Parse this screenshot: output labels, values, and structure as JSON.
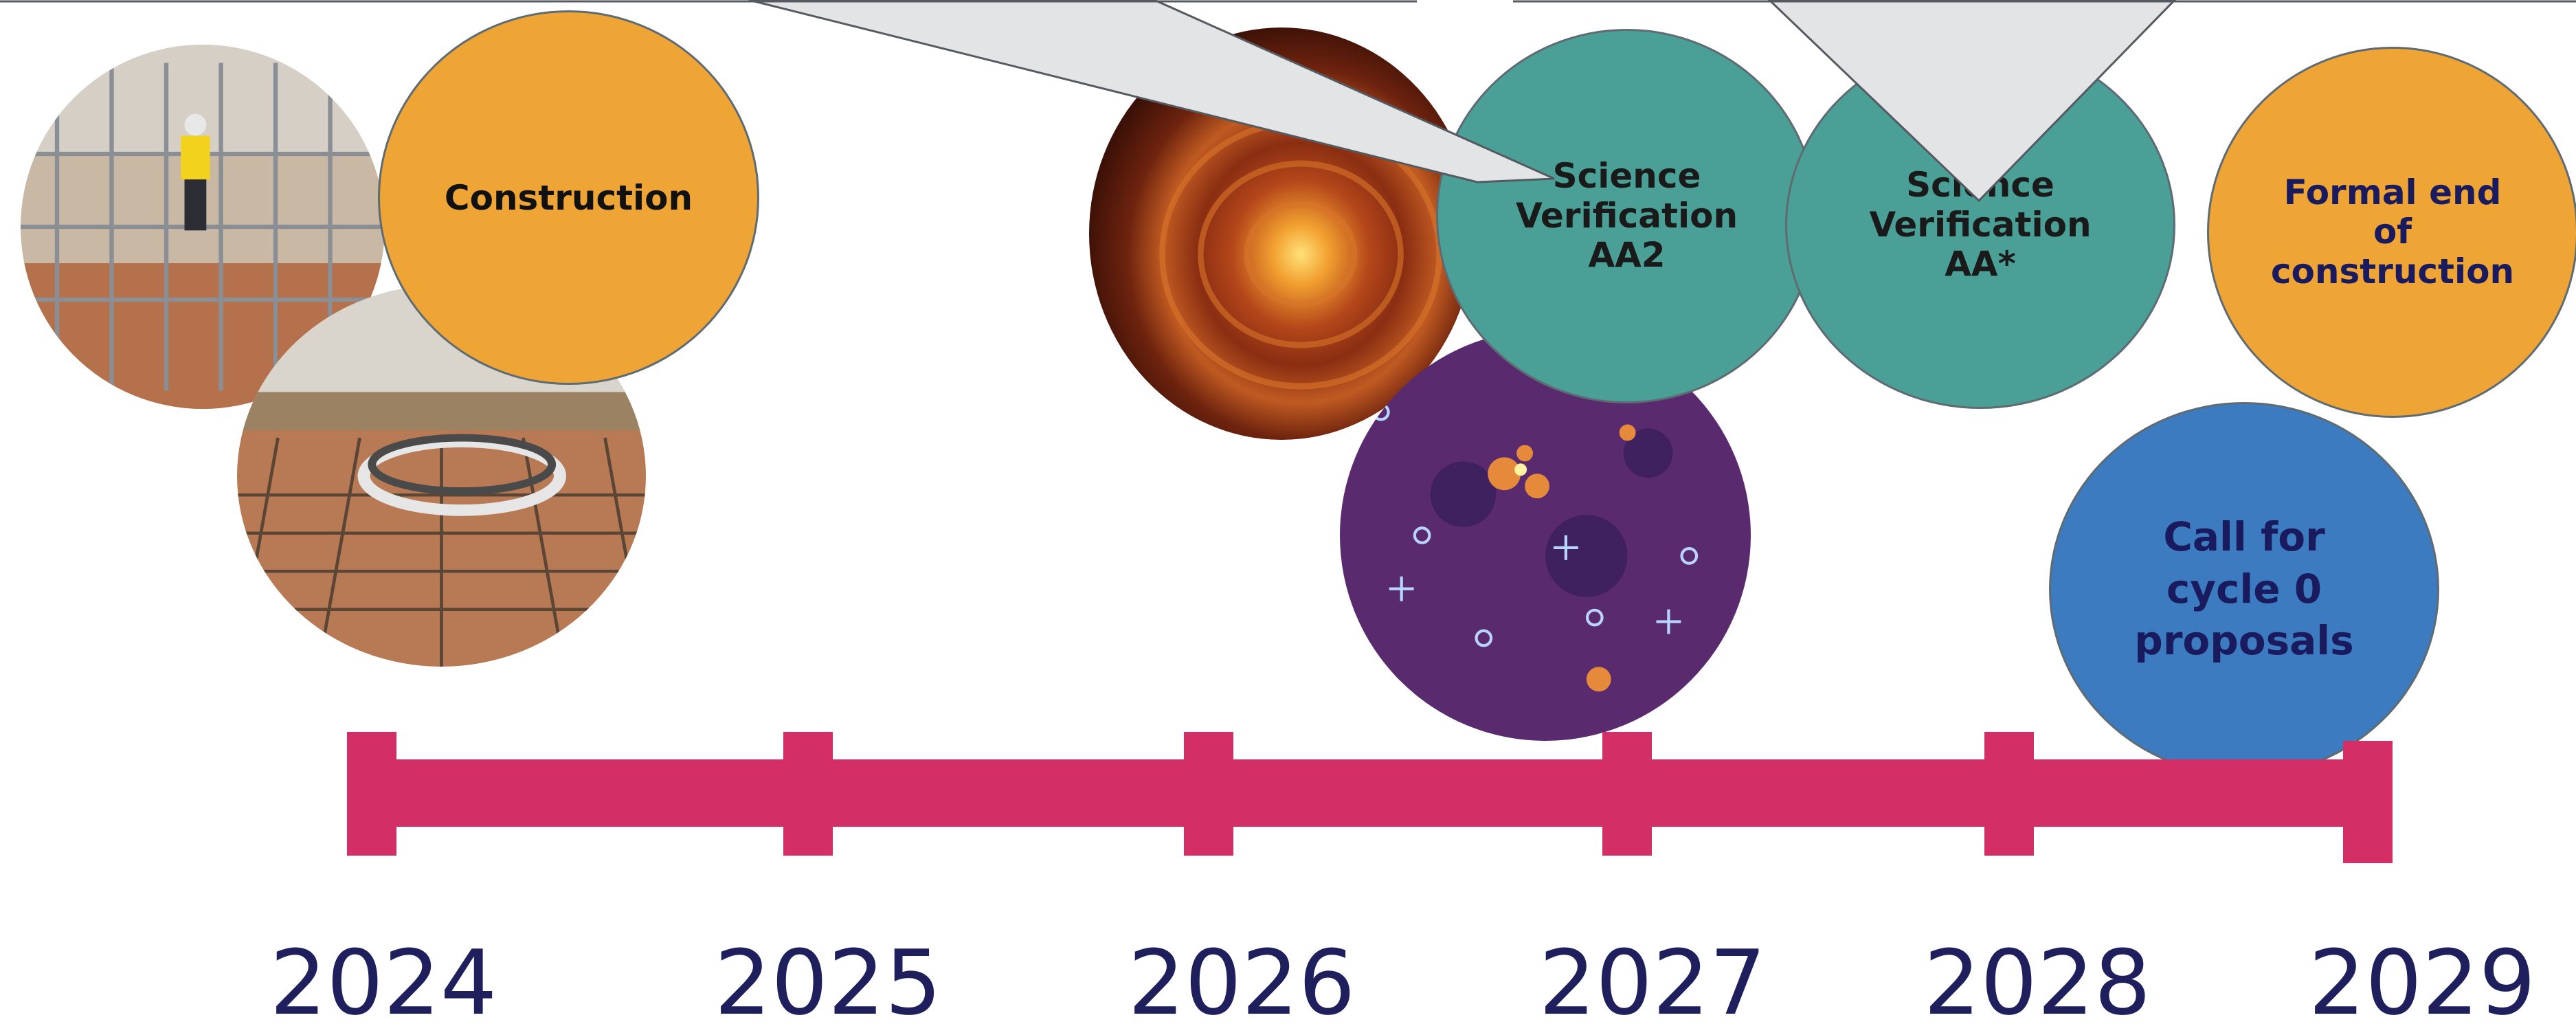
{
  "timeline": {
    "years": [
      "2024",
      "2025",
      "2026",
      "2027",
      "2028",
      "2029"
    ],
    "bar_color": "#d42e66",
    "year_color": "#1f1f5e"
  },
  "milestones": {
    "construction": {
      "label": "Construction",
      "color": "#eea535"
    },
    "sv_aa2": {
      "label": "Science\nVerification\nAA2",
      "color": "#4aa096"
    },
    "sv_aastar": {
      "label": "Science\nVerification\nAA*",
      "color": "#4aa096"
    },
    "formal_end": {
      "label": "Formal end\nof\nconstruction",
      "color": "#eea535"
    },
    "call_cycle0": {
      "label": "Call for\ncycle 0\nproposals",
      "color": "#3c7bbf"
    }
  },
  "photos": [
    {
      "name": "construction-site-photo",
      "subject": "workers on steel structure"
    },
    {
      "name": "antenna-foundation-photo",
      "subject": "circular rebar foundation"
    },
    {
      "name": "protoplanetary-disk-image",
      "subject": "ringed orange disk"
    },
    {
      "name": "radio-sky-map-image",
      "subject": "purple sky map with markers"
    }
  ],
  "callout_color": "#e3e4e6"
}
